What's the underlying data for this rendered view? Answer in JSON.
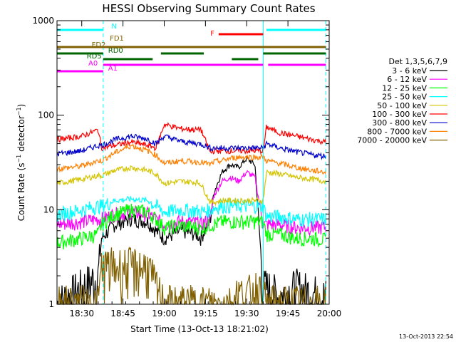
{
  "chart_data": {
    "type": "line",
    "title": "HESSI Observing Summary Count Rates",
    "xlabel": "Start Time (13-Oct-13 18:21:02)",
    "ylabel": "Count Rate (s⁻¹ detector⁻¹)",
    "ylabel_main": "Count Rate (s",
    "ylabel_sup1": "−1",
    "ylabel_mid": " detector",
    "ylabel_sup2": "−1",
    "ylabel_end": ")",
    "yscale": "log",
    "ylim": [
      1,
      1000
    ],
    "xlim_minutes": [
      18.35,
      20.0
    ],
    "x_ticks": [
      "18:30",
      "18:45",
      "19:00",
      "19:15",
      "19:30",
      "19:45",
      "20:00"
    ],
    "x_tick_values": [
      18.5,
      18.75,
      19.0,
      19.25,
      19.5,
      19.75,
      20.0
    ],
    "y_ticks": [
      "1",
      "10",
      "100",
      "1000"
    ],
    "y_tick_values": [
      1,
      10,
      100,
      1000
    ],
    "legend_title": "Det 1,3,5,6,7,9",
    "legend_position": "right",
    "timestamp": "13-Oct-2013 22:54",
    "grid": false,
    "series": [
      {
        "name": "3 - 6 keV",
        "color": "#000000",
        "x": [
          18.35,
          18.5,
          18.6,
          18.62,
          18.7,
          18.8,
          18.9,
          18.95,
          19.0,
          19.1,
          19.2,
          19.22,
          19.28,
          19.3,
          19.35,
          19.4,
          19.45,
          19.5,
          19.55,
          19.6,
          19.62,
          19.7,
          19.8,
          19.9,
          19.98
        ],
        "y": [
          1,
          1.5,
          2,
          5,
          7,
          8,
          7.5,
          6,
          5,
          6,
          5.5,
          5,
          8,
          15,
          25,
          30,
          28,
          35,
          30,
          1.5,
          1.5,
          1.2,
          1.5,
          1.3,
          1.2
        ]
      },
      {
        "name": "6 - 12 keV",
        "color": "#ff00ff",
        "x": [
          18.35,
          18.5,
          18.6,
          18.62,
          18.7,
          18.8,
          18.9,
          18.95,
          19.0,
          19.1,
          19.2,
          19.22,
          19.28,
          19.3,
          19.35,
          19.4,
          19.45,
          19.5,
          19.55,
          19.6,
          19.62,
          19.7,
          19.8,
          19.9,
          19.98
        ],
        "y": [
          7,
          7.5,
          8,
          8,
          9,
          9.5,
          9,
          8,
          7,
          7.5,
          7.3,
          7,
          8,
          14,
          20,
          22,
          20,
          25,
          22,
          7,
          7,
          7,
          6.5,
          6.5,
          6.5
        ]
      },
      {
        "name": "12 - 25 keV",
        "color": "#00ff00",
        "x": [
          18.35,
          18.5,
          18.6,
          18.62,
          18.7,
          18.8,
          18.9,
          18.95,
          19.0,
          19.1,
          19.2,
          19.22,
          19.28,
          19.3,
          19.35,
          19.4,
          19.45,
          19.5,
          19.55,
          19.6,
          19.62,
          19.7,
          19.8,
          19.9,
          19.98
        ],
        "y": [
          4.5,
          5,
          5.5,
          7,
          9,
          10,
          9.5,
          8,
          6.5,
          6.8,
          6.5,
          6.3,
          7,
          7,
          7.5,
          7.5,
          7.5,
          7.5,
          7.5,
          7.5,
          5.5,
          5.5,
          5,
          5,
          4.8
        ]
      },
      {
        "name": "25 - 50 keV",
        "color": "#00ffff",
        "x": [
          18.35,
          18.5,
          18.6,
          18.62,
          18.7,
          18.8,
          18.9,
          18.95,
          19.0,
          19.1,
          19.2,
          19.22,
          19.28,
          19.3,
          19.35,
          19.4,
          19.45,
          19.5,
          19.55,
          19.6,
          19.62,
          19.7,
          19.8,
          19.9,
          19.98
        ],
        "y": [
          9,
          10,
          11,
          11,
          12.5,
          13,
          12.5,
          11,
          9.5,
          10,
          9.8,
          9.5,
          10,
          10.5,
          11,
          11,
          11,
          11,
          11,
          11,
          8.5,
          8.5,
          8,
          8,
          8
        ]
      },
      {
        "name": "50 - 100 keV",
        "color": "#d4c400",
        "x": [
          18.35,
          18.5,
          18.6,
          18.62,
          18.7,
          18.8,
          18.9,
          18.95,
          19.0,
          19.1,
          19.2,
          19.22,
          19.28,
          19.3,
          19.35,
          19.4,
          19.45,
          19.5,
          19.55,
          19.6,
          19.62,
          19.7,
          19.8,
          19.9,
          19.98
        ],
        "y": [
          19,
          21,
          23,
          23,
          26,
          28,
          26,
          24,
          19,
          20,
          19.5,
          19,
          12,
          12,
          12.5,
          12.5,
          12.5,
          12.5,
          12.5,
          12.5,
          25,
          24,
          22,
          21,
          20
        ]
      },
      {
        "name": "100 - 300 keV",
        "color": "#ff0000",
        "x": [
          18.35,
          18.5,
          18.6,
          18.62,
          18.7,
          18.8,
          18.9,
          18.95,
          19.0,
          19.1,
          19.2,
          19.22,
          19.28,
          19.3,
          19.35,
          19.4,
          19.45,
          19.5,
          19.55,
          19.6,
          19.62,
          19.7,
          19.8,
          19.9,
          19.98
        ],
        "y": [
          55,
          60,
          70,
          45,
          48,
          52,
          48,
          45,
          80,
          72,
          70,
          72,
          40,
          42,
          42,
          42,
          42,
          42,
          42,
          42,
          75,
          65,
          60,
          55,
          52
        ]
      },
      {
        "name": "300 - 800 keV",
        "color": "#0000cc",
        "x": [
          18.35,
          18.5,
          18.6,
          18.62,
          18.7,
          18.8,
          18.9,
          18.95,
          19.0,
          19.1,
          19.2,
          19.22,
          19.28,
          19.3,
          19.35,
          19.4,
          19.45,
          19.5,
          19.55,
          19.6,
          19.62,
          19.7,
          19.8,
          19.9,
          19.98
        ],
        "y": [
          39,
          42,
          48,
          48,
          55,
          60,
          56,
          50,
          60,
          53,
          50,
          50,
          45,
          45,
          45,
          45,
          45,
          45,
          45,
          45,
          50,
          45,
          41,
          38,
          37
        ]
      },
      {
        "name": "800 - 7000 keV",
        "color": "#ff8000",
        "x": [
          18.35,
          18.5,
          18.6,
          18.62,
          18.7,
          18.8,
          18.9,
          18.95,
          19.0,
          19.1,
          19.2,
          19.22,
          19.28,
          19.3,
          19.35,
          19.4,
          19.45,
          19.5,
          19.55,
          19.6,
          19.62,
          19.7,
          19.8,
          19.9,
          19.98
        ],
        "y": [
          27,
          29,
          33,
          33,
          40,
          48,
          42,
          38,
          31,
          33,
          32,
          32,
          30,
          32,
          33,
          35,
          36,
          36,
          36,
          36,
          33,
          31,
          28,
          26,
          25
        ]
      },
      {
        "name": "7000 - 20000 keV",
        "color": "#806000",
        "x": [
          18.35,
          18.5,
          18.6,
          18.62,
          18.7,
          18.8,
          18.9,
          18.95,
          19.0,
          19.1,
          19.2,
          19.22,
          19.28,
          19.3,
          19.35,
          19.4,
          19.45,
          19.5,
          19.55,
          19.6,
          19.62,
          19.7,
          19.8,
          19.9,
          19.98
        ],
        "y": [
          1,
          1,
          1,
          2.5,
          2.5,
          2.5,
          2.5,
          1.5,
          1,
          1,
          1,
          1,
          1,
          1,
          1,
          1,
          1.3,
          1.2,
          1.5,
          1.2,
          1,
          1,
          1,
          1,
          1
        ]
      }
    ],
    "flags": [
      {
        "name": "N",
        "color": "#00ffff",
        "label_color": "#00ffff",
        "segments": [
          [
            18.35,
            18.63
          ],
          [
            19.62,
            19.98
          ]
        ]
      },
      {
        "name": "F",
        "color": "#ff0000",
        "label_color": "#ff0000",
        "segments": [
          [
            19.33,
            19.6
          ]
        ]
      },
      {
        "name": "FD1",
        "color": "#806000",
        "label_color": "#806000",
        "segments": [
          [
            19.6,
            19.98
          ]
        ]
      },
      {
        "name": "FD2",
        "color": "#806000",
        "label_color": "#806000",
        "segments": [
          [
            18.35,
            18.63
          ]
        ]
      },
      {
        "name": "RD0",
        "color": "#006400",
        "label_color": "#006400",
        "segments": [
          [
            18.35,
            18.63
          ],
          [
            18.98,
            19.24
          ],
          [
            19.6,
            19.98
          ]
        ]
      },
      {
        "name": "RD5",
        "color": "#006400",
        "label_color": "#006400",
        "segments": [
          [
            18.63,
            18.93
          ],
          [
            19.41,
            19.57
          ]
        ]
      },
      {
        "name": "A0",
        "color": "#ff00ff",
        "label_color": "#ff00ff",
        "segments": [
          [
            19.63,
            19.98
          ]
        ]
      },
      {
        "name": "A1",
        "color": "#ff00ff",
        "label_color": "#ff00ff",
        "segments": [
          [
            18.35,
            18.63
          ]
        ]
      }
    ],
    "vlines": [
      {
        "x": 18.35,
        "color": "#00ffff",
        "style": "solid"
      },
      {
        "x": 18.63,
        "color": "#00ffff",
        "style": "dashed"
      },
      {
        "x": 19.6,
        "color": "#00ffff",
        "style": "solid"
      },
      {
        "x": 19.98,
        "color": "#00ffff",
        "style": "dashed"
      }
    ]
  }
}
